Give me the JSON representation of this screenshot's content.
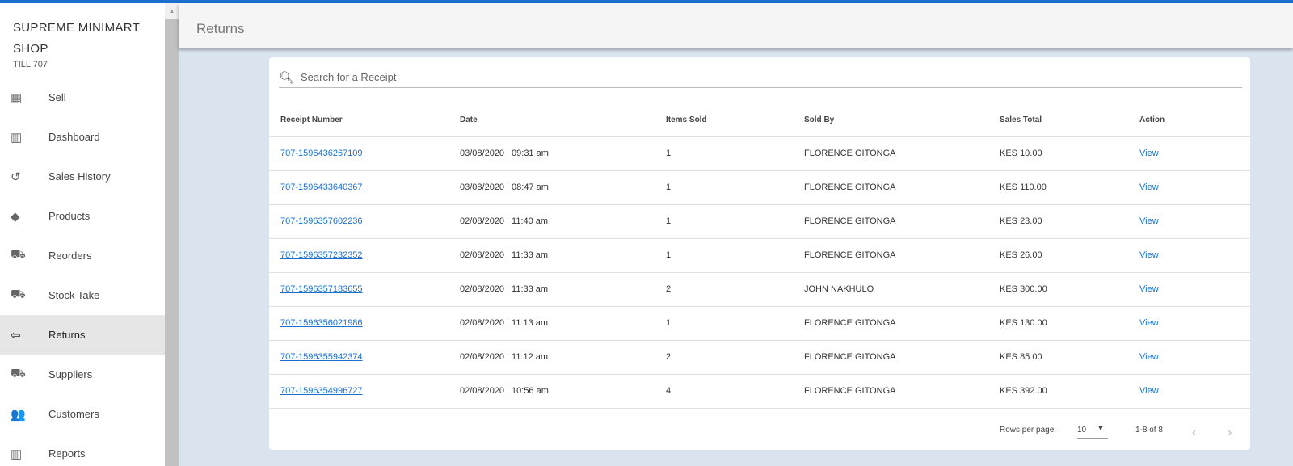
{
  "shop": {
    "name": "SUPREME MINIMART SHOP",
    "till": "TILL 707"
  },
  "colors": {
    "accent": "#1a6fcf",
    "background": "#d9e4ef"
  },
  "sidebar": {
    "items": [
      {
        "label": "Sell",
        "icon": "register-icon",
        "glyph": "▦"
      },
      {
        "label": "Dashboard",
        "icon": "bar-chart-icon",
        "glyph": "▥"
      },
      {
        "label": "Sales History",
        "icon": "history-icon",
        "glyph": "↺"
      },
      {
        "label": "Products",
        "icon": "tag-icon",
        "glyph": "◆"
      },
      {
        "label": "Reorders",
        "icon": "truck-icon",
        "glyph": "⛟"
      },
      {
        "label": "Stock Take",
        "icon": "truck-icon",
        "glyph": "⛟"
      },
      {
        "label": "Returns",
        "icon": "return-clipboard-icon",
        "glyph": "⇦",
        "active": true
      },
      {
        "label": "Suppliers",
        "icon": "truck-icon",
        "glyph": "⛟"
      },
      {
        "label": "Customers",
        "icon": "people-icon",
        "glyph": "👥"
      },
      {
        "label": "Reports",
        "icon": "bar-chart-icon",
        "glyph": "▥"
      }
    ]
  },
  "header": {
    "title": "Returns"
  },
  "search": {
    "placeholder": "Search for a Receipt",
    "value": ""
  },
  "table": {
    "columns": [
      "Receipt Number",
      "Date",
      "Items Sold",
      "Sold By",
      "Sales Total",
      "Action"
    ],
    "rows": [
      [
        "707-1596436267109",
        "03/08/2020 | 09:31 am",
        "1",
        "FLORENCE GITONGA",
        "KES 10.00",
        "View"
      ],
      [
        "707-1596433640367",
        "03/08/2020 | 08:47 am",
        "1",
        "FLORENCE GITONGA",
        "KES 110.00",
        "View"
      ],
      [
        "707-1596357602236",
        "02/08/2020 | 11:40 am",
        "1",
        "FLORENCE GITONGA",
        "KES 23.00",
        "View"
      ],
      [
        "707-1596357232352",
        "02/08/2020 | 11:33 am",
        "1",
        "FLORENCE GITONGA",
        "KES 26.00",
        "View"
      ],
      [
        "707-1596357183655",
        "02/08/2020 | 11:33 am",
        "2",
        "JOHN NAKHULO",
        "KES 300.00",
        "View"
      ],
      [
        "707-1596356021986",
        "02/08/2020 | 11:13 am",
        "1",
        "FLORENCE GITONGA",
        "KES 130.00",
        "View"
      ],
      [
        "707-1596355942374",
        "02/08/2020 | 11:12 am",
        "2",
        "FLORENCE GITONGA",
        "KES 85.00",
        "View"
      ],
      [
        "707-1596354996727",
        "02/08/2020 | 10:56 am",
        "4",
        "FLORENCE GITONGA",
        "KES 392.00",
        "View"
      ]
    ]
  },
  "pagination": {
    "rows_per_page_label": "Rows per page:",
    "rows_per_page": "10",
    "range": "1-8 of 8"
  }
}
